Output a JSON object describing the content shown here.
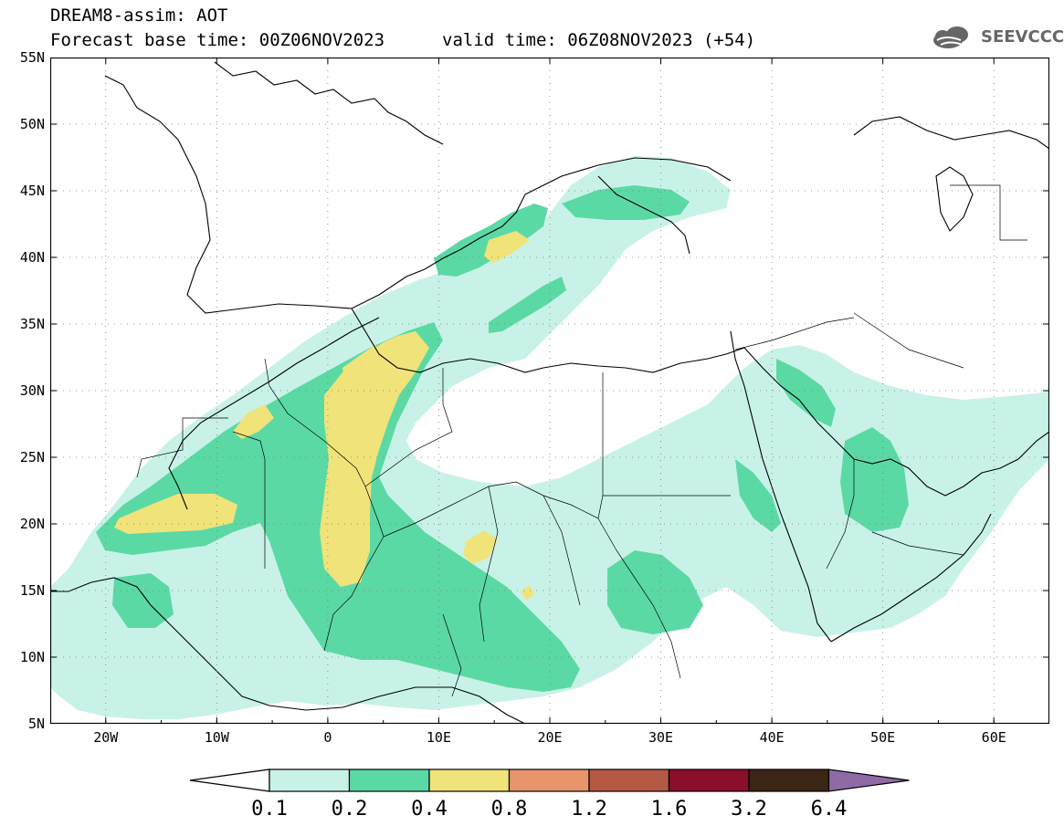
{
  "title": {
    "line1": "DREAM8-assim: AOT",
    "base_time": "Forecast base time: 00Z06NOV2023",
    "valid_time": "valid time: 06Z08NOV2023 (+54)"
  },
  "logo": {
    "text": "SEEVCCC",
    "icon": "cloud-icon"
  },
  "map": {
    "lat_labels": [
      "55N",
      "50N",
      "45N",
      "40N",
      "35N",
      "30N",
      "25N",
      "20N",
      "15N",
      "10N",
      "5N"
    ],
    "lon_labels": [
      "20W",
      "10W",
      "0",
      "10E",
      "20E",
      "30E",
      "40E",
      "50E",
      "60E"
    ],
    "lat_range": [
      5,
      55
    ],
    "lon_range": [
      -25,
      65
    ],
    "grid": "dotted"
  },
  "colorbar": {
    "labels": [
      "0.1",
      "0.2",
      "0.4",
      "0.8",
      "1.2",
      "1.6",
      "3.2",
      "6.4"
    ],
    "colors": [
      "#c8f2e8",
      "#5bd9a5",
      "#f0e37a",
      "#e8956b",
      "#b55944",
      "#8a0f2a",
      "#3b2515",
      "#8e6aa6"
    ],
    "under_color": "#ffffff"
  }
}
